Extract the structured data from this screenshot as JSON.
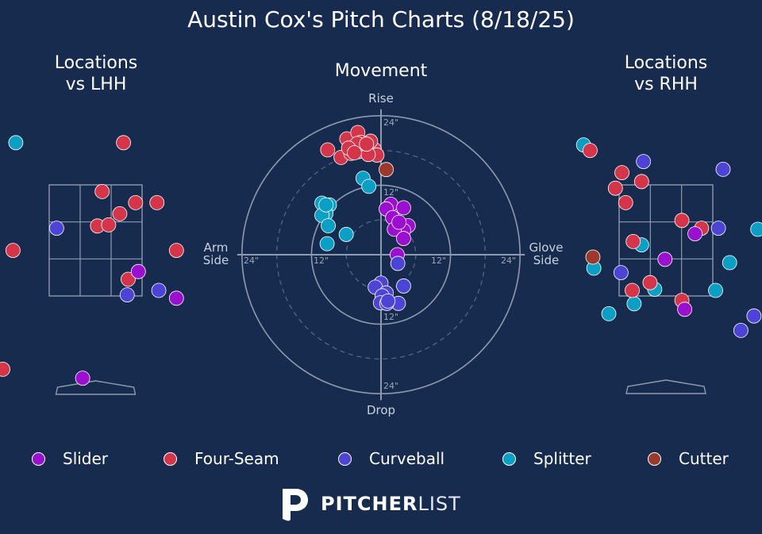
{
  "title": "Austin Cox's Pitch Charts (8/18/25)",
  "panels": {
    "lhh": {
      "line1": "Locations",
      "line2": "vs LHH"
    },
    "movement": {
      "title": "Movement"
    },
    "rhh": {
      "line1": "Locations",
      "line2": "vs RHH"
    }
  },
  "movement_axes": {
    "top": "Rise",
    "bottom": "Drop",
    "left_line1": "Arm",
    "left_line2": "Side",
    "right_line1": "Glove",
    "right_line2": "Side",
    "ring_labels": {
      "top_outer": "24\"",
      "top_inner": "12\"",
      "left_outer": "24\"",
      "left_inner": "12\"",
      "right_inner": "12\"",
      "right_outer": "24\"",
      "bottom_inner": "12\"",
      "bottom_outer": "24\""
    }
  },
  "legend": [
    {
      "name": "Slider",
      "color": "#9a0fd0"
    },
    {
      "name": "Four-Seam",
      "color": "#d63449"
    },
    {
      "name": "Curveball",
      "color": "#4c44d6"
    },
    {
      "name": "Splitter",
      "color": "#0aa0c6"
    },
    {
      "name": "Cutter",
      "color": "#9b3a2a"
    }
  ],
  "branding": {
    "bold": "PITCHER",
    "light": "LIST"
  },
  "chart_data": [
    {
      "type": "scatter",
      "title": "Movement",
      "units": "inches",
      "x_axis": "horizontal break (negative = arm side, positive = glove side)",
      "y_axis": "induced vertical break (positive = rise, negative = drop)",
      "xlim": [
        -24,
        24
      ],
      "ylim": [
        -24,
        24
      ],
      "rings": [
        6,
        12,
        18,
        24
      ],
      "series": [
        {
          "name": "Four-Seam",
          "points": [
            [
              -9.2,
              18.1
            ],
            [
              -5.9,
              20.0
            ],
            [
              -4.0,
              21.1
            ],
            [
              -2.8,
              18.8
            ],
            [
              -1.2,
              18.2
            ],
            [
              -0.7,
              17.2
            ],
            [
              -1.8,
              19.6
            ],
            [
              -3.5,
              19.4
            ],
            [
              -4.7,
              18.3
            ],
            [
              -3.9,
              17.8
            ],
            [
              -2.2,
              17.3
            ],
            [
              -6.9,
              16.8
            ],
            [
              -5.2,
              17.5
            ],
            [
              -4.1,
              19.2
            ],
            [
              -2.5,
              19.1
            ],
            [
              -5.6,
              18.4
            ],
            [
              -4.6,
              17.6
            ]
          ]
        },
        {
          "name": "Cutter",
          "points": [
            [
              0.9,
              14.7
            ]
          ]
        },
        {
          "name": "Splitter",
          "points": [
            [
              -3.1,
              13.2
            ],
            [
              -2.1,
              11.8
            ],
            [
              -10.2,
              8.9
            ],
            [
              -8.9,
              8.6
            ],
            [
              -9.5,
              7.1
            ],
            [
              -10.2,
              6.8
            ],
            [
              -9.1,
              5.0
            ],
            [
              -6.0,
              3.5
            ],
            [
              -9.3,
              1.9
            ],
            [
              -9.5,
              8.6
            ]
          ]
        },
        {
          "name": "Slider",
          "points": [
            [
              1.7,
              8.7
            ],
            [
              0.9,
              7.9
            ],
            [
              3.9,
              8.1
            ],
            [
              2.0,
              6.4
            ],
            [
              4.7,
              5.0
            ],
            [
              3.9,
              4.2
            ],
            [
              2.3,
              4.4
            ],
            [
              3.9,
              2.8
            ],
            [
              3.1,
              5.6
            ],
            [
              2.8,
              0.0
            ]
          ]
        },
        {
          "name": "Curveball",
          "points": [
            [
              2.9,
              -1.5
            ],
            [
              0.0,
              -4.9
            ],
            [
              -1.0,
              -5.6
            ],
            [
              0.9,
              -6.6
            ],
            [
              3.9,
              -5.4
            ],
            [
              0.2,
              -7.1
            ],
            [
              -0.1,
              -8.3
            ],
            [
              3.0,
              -8.4
            ],
            [
              1.0,
              -8.4
            ],
            [
              1.2,
              -8.0
            ]
          ]
        }
      ]
    },
    {
      "type": "scatter",
      "title": "Locations vs LHH",
      "x_axis": "horizontal location (zone widths from zone center, catcher view)",
      "y_axis": "vertical location (zone heights from zone bottom)",
      "zone": {
        "cols": 3,
        "rows": 3
      },
      "series": [
        {
          "name": "Splitter",
          "points": [
            [
              -0.86,
              1.38
            ]
          ]
        },
        {
          "name": "Four-Seam",
          "points": [
            [
              0.3,
              1.38
            ],
            [
              0.07,
              0.94
            ],
            [
              0.43,
              0.84
            ],
            [
              0.66,
              0.84
            ],
            [
              0.26,
              0.74
            ],
            [
              0.02,
              0.63
            ],
            [
              0.14,
              0.64
            ],
            [
              0.87,
              0.41
            ],
            [
              -0.89,
              0.41
            ],
            [
              0.35,
              0.15
            ],
            [
              -1.0,
              -0.66
            ]
          ]
        },
        {
          "name": "Curveball",
          "points": [
            [
              -0.42,
              0.61
            ],
            [
              0.68,
              0.05
            ],
            [
              1.19,
              0.1
            ],
            [
              0.34,
              0.01
            ]
          ]
        },
        {
          "name": "Slider",
          "points": [
            [
              0.46,
              0.22
            ],
            [
              1.32,
              0.27
            ],
            [
              0.87,
              -0.02
            ],
            [
              1.19,
              -0.22
            ],
            [
              -0.14,
              -0.74
            ],
            [
              1.41,
              -0.62
            ]
          ]
        }
      ]
    },
    {
      "type": "scatter",
      "title": "Locations vs RHH",
      "x_axis": "horizontal location (zone widths from zone center, catcher view)",
      "y_axis": "vertical location (zone heights from zone bottom)",
      "zone": {
        "cols": 3,
        "rows": 3
      },
      "series": [
        {
          "name": "Splitter",
          "points": [
            [
              -0.88,
              1.36
            ],
            [
              -0.26,
              0.46
            ],
            [
              -0.77,
              0.25
            ],
            [
              -0.12,
              0.06
            ],
            [
              0.68,
              0.3
            ],
            [
              0.53,
              0.05
            ],
            [
              -0.34,
              -0.07
            ],
            [
              -0.61,
              -0.16
            ],
            [
              0.98,
              0.6
            ]
          ]
        },
        {
          "name": "Four-Seam",
          "points": [
            [
              -0.81,
              1.31
            ],
            [
              -0.47,
              1.11
            ],
            [
              -0.54,
              0.97
            ],
            [
              -0.26,
              1.03
            ],
            [
              -0.43,
              0.84
            ],
            [
              0.17,
              0.68
            ],
            [
              0.38,
              0.61
            ],
            [
              -0.35,
              0.49
            ],
            [
              -0.17,
              0.12
            ],
            [
              -0.36,
              0.05
            ],
            [
              0.17,
              -0.04
            ]
          ]
        },
        {
          "name": "Cutter",
          "points": [
            [
              -0.78,
              0.35
            ]
          ]
        },
        {
          "name": "Curveball",
          "points": [
            [
              -0.24,
              1.21
            ],
            [
              0.61,
              1.14
            ],
            [
              0.56,
              0.61
            ],
            [
              -0.48,
              0.21
            ],
            [
              0.94,
              -0.18
            ],
            [
              0.8,
              -0.31
            ]
          ]
        },
        {
          "name": "Slider",
          "points": [
            [
              0.31,
              0.56
            ],
            [
              -0.01,
              0.33
            ],
            [
              0.2,
              -0.12
            ]
          ]
        }
      ]
    }
  ]
}
